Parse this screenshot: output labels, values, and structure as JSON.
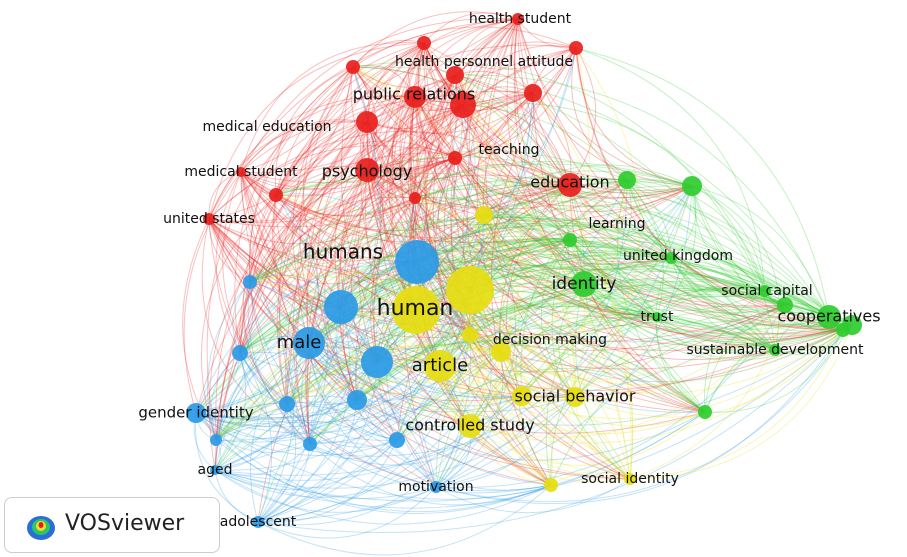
{
  "logo": "VOSviewer",
  "nodes": [
    {
      "label": "health student"
    },
    {
      "label": "health personnel attitude"
    },
    {
      "label": "public relations"
    },
    {
      "label": "medical education"
    },
    {
      "label": "teaching"
    },
    {
      "label": "medical student"
    },
    {
      "label": "psychology"
    },
    {
      "label": "education"
    },
    {
      "label": "united states"
    },
    {
      "label": "learning"
    },
    {
      "label": "united kingdom"
    },
    {
      "label": "identity"
    },
    {
      "label": "social capital"
    },
    {
      "label": "cooperatives"
    },
    {
      "label": "trust"
    },
    {
      "label": "sustainable development"
    },
    {
      "label": "humans"
    },
    {
      "label": "male"
    },
    {
      "label": "gender identity"
    },
    {
      "label": "aged"
    },
    {
      "label": "adolescent"
    },
    {
      "label": "motivation"
    },
    {
      "label": "human"
    },
    {
      "label": "article"
    },
    {
      "label": "decision making"
    },
    {
      "label": "social behavior"
    },
    {
      "label": "controlled study"
    },
    {
      "label": "social identity"
    }
  ]
}
